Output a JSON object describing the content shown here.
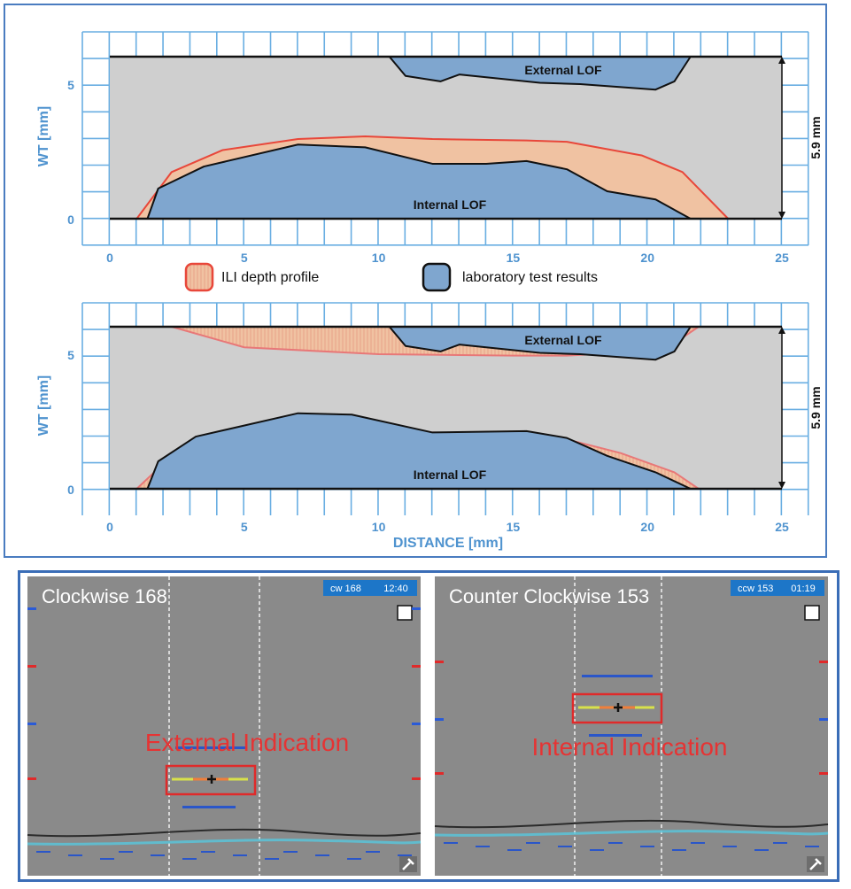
{
  "colors": {
    "axis_blue": "#4f93cf",
    "grid_blue": "#69aee2",
    "ili_red": "#e8473a",
    "ili_fill": "#f0c2a2",
    "lab_blue": "#7fa6cf",
    "gray_bg": "#cfcfcf",
    "ut_bg": "#8a8a8a",
    "red_text": "#e63333",
    "badge_blue": "#1d76c8"
  },
  "legend": {
    "ili_label": "ILI depth profile",
    "lab_label": "laboratory test results"
  },
  "chart_data": [
    {
      "type": "area",
      "ylabel": "WT [mm]",
      "xlabel": "",
      "xlim": [
        0,
        25
      ],
      "ylim": [
        0,
        5.9
      ],
      "x_ticks": [
        "0",
        "5",
        "10",
        "15",
        "20",
        "25"
      ],
      "y_ticks": [
        "0",
        "5"
      ],
      "grid": true,
      "wall_thickness_label": "5.9 mm",
      "annotations": {
        "external": "External LOF",
        "internal": "Internal LOF"
      },
      "series": [
        {
          "name": "ILI depth profile",
          "kind": "internal",
          "x": [
            1,
            2.3,
            4.2,
            7,
            9.5,
            12,
            15.5,
            17,
            19.8,
            21.3,
            23
          ],
          "y": [
            0,
            1.7,
            2.5,
            2.9,
            3.0,
            2.9,
            2.85,
            2.8,
            2.3,
            1.7,
            0
          ]
        },
        {
          "name": "laboratory test results",
          "kind": "internal",
          "x": [
            1.4,
            1.8,
            3.5,
            7,
            9.5,
            12,
            14,
            15.5,
            17,
            18.5,
            20.3,
            21.6
          ],
          "y": [
            0,
            1.1,
            1.9,
            2.7,
            2.6,
            2.0,
            2.0,
            2.1,
            1.8,
            1.0,
            0.7,
            0
          ]
        },
        {
          "name": "laboratory test results",
          "kind": "external",
          "x": [
            10.4,
            11,
            12.3,
            13,
            16,
            17.5,
            20.3,
            21,
            21.6
          ],
          "y": [
            5.9,
            5.2,
            5.0,
            5.25,
            4.95,
            4.9,
            4.7,
            5.0,
            5.9
          ]
        }
      ]
    },
    {
      "type": "area",
      "ylabel": "WT [mm]",
      "xlabel": "DISTANCE [mm]",
      "xlim": [
        0,
        25
      ],
      "ylim": [
        0,
        5.9
      ],
      "x_ticks": [
        "0",
        "5",
        "10",
        "15",
        "20",
        "25"
      ],
      "y_ticks": [
        "0",
        "5"
      ],
      "grid": true,
      "wall_thickness_label": "5.9 mm",
      "annotations": {
        "external": "External LOF",
        "internal": "Internal LOF"
      },
      "series": [
        {
          "name": "ILI depth profile",
          "kind": "internal",
          "x": [
            1,
            2.2,
            4,
            7,
            9.5,
            12,
            15.5,
            17,
            19,
            21,
            21.9
          ],
          "y": [
            0,
            1.1,
            1.7,
            2.0,
            2.05,
            2.05,
            2.0,
            1.8,
            1.3,
            0.6,
            0
          ]
        },
        {
          "name": "ILI depth profile",
          "kind": "external",
          "x": [
            2.3,
            5,
            10,
            15,
            17,
            20,
            21,
            21.9
          ],
          "y": [
            5.9,
            5.15,
            4.9,
            4.85,
            4.85,
            5.0,
            5.3,
            5.9
          ]
        },
        {
          "name": "laboratory test results",
          "kind": "internal",
          "x": [
            1.4,
            1.8,
            3.2,
            7,
            9,
            12,
            15.5,
            17,
            18.5,
            20.3,
            21.6
          ],
          "y": [
            0,
            1.0,
            1.9,
            2.75,
            2.7,
            2.05,
            2.1,
            1.85,
            1.2,
            0.6,
            0
          ]
        },
        {
          "name": "laboratory test results",
          "kind": "external",
          "x": [
            10.4,
            11,
            12.3,
            13,
            16,
            17.5,
            20.3,
            21,
            21.6
          ],
          "y": [
            5.9,
            5.2,
            5.0,
            5.25,
            4.95,
            4.9,
            4.7,
            5.0,
            5.9
          ]
        }
      ]
    }
  ],
  "ut_panels": [
    {
      "title": "Clockwise 168",
      "badge_left": "cw 168",
      "badge_right": "12:40",
      "indication": "External Indication"
    },
    {
      "title": "Counter Clockwise 153",
      "badge_left": "ccw 153",
      "badge_right": "01:19",
      "indication": "Internal Indication"
    }
  ]
}
